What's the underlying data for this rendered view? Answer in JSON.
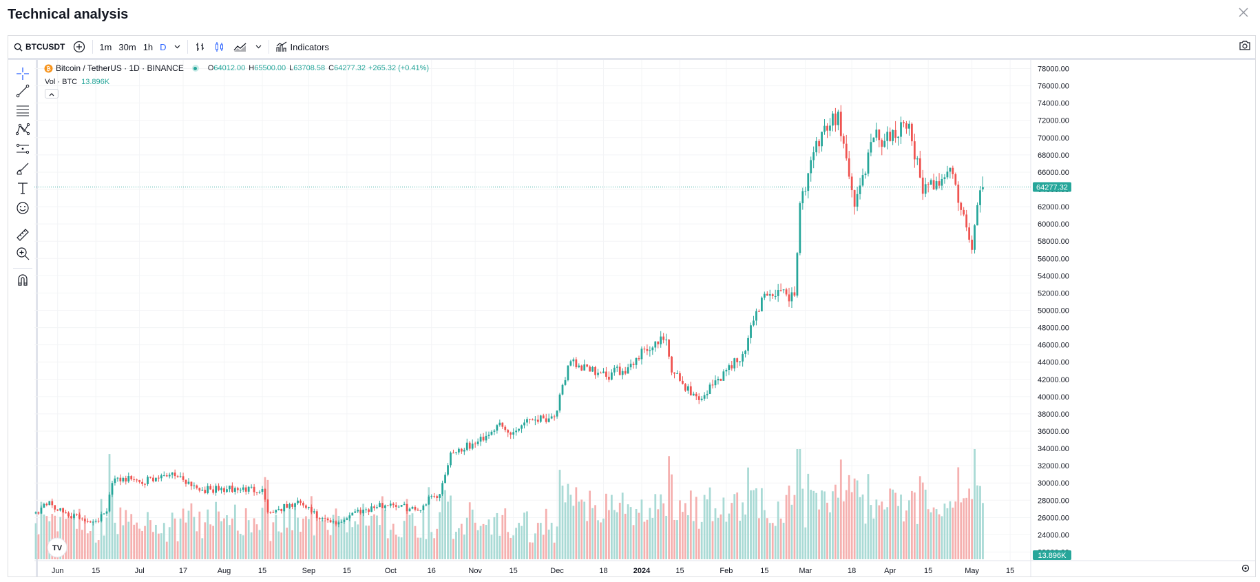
{
  "page": {
    "title": "Technical analysis"
  },
  "toolbar": {
    "symbol": "BTCUSDT",
    "intervals": [
      "1m",
      "30m",
      "1h",
      "D"
    ],
    "active_interval": "D",
    "indicators_label": "Indicators"
  },
  "legend": {
    "name": "Bitcoin / TetherUS · 1D · BINANCE",
    "o_label": "O",
    "o": "64012.00",
    "h_label": "H",
    "h": "65500.00",
    "l_label": "L",
    "l": "63708.58",
    "c_label": "C",
    "c": "64277.32",
    "change": "+265.32 (+0.41%)",
    "vol_label": "Vol · BTC",
    "vol": "13.896K"
  },
  "price_axis": {
    "labels": [
      "78000.00",
      "76000.00",
      "74000.00",
      "72000.00",
      "70000.00",
      "68000.00",
      "66000.00",
      "64000.00",
      "62000.00",
      "60000.00",
      "58000.00",
      "56000.00",
      "54000.00",
      "52000.00",
      "50000.00",
      "48000.00",
      "46000.00",
      "44000.00",
      "42000.00",
      "40000.00",
      "38000.00",
      "36000.00",
      "34000.00",
      "32000.00",
      "30000.00",
      "28000.00",
      "26000.00",
      "24000.00",
      "22000.00"
    ],
    "current_price": "64277.32",
    "current_volume": "13.896K"
  },
  "time_axis": {
    "labels": [
      {
        "text": "Jun",
        "bold": false
      },
      {
        "text": "15",
        "bold": false
      },
      {
        "text": "Jul",
        "bold": false
      },
      {
        "text": "17",
        "bold": false
      },
      {
        "text": "Aug",
        "bold": false
      },
      {
        "text": "15",
        "bold": false
      },
      {
        "text": "Sep",
        "bold": false
      },
      {
        "text": "15",
        "bold": false
      },
      {
        "text": "Oct",
        "bold": false
      },
      {
        "text": "16",
        "bold": false
      },
      {
        "text": "Nov",
        "bold": false
      },
      {
        "text": "15",
        "bold": false
      },
      {
        "text": "Dec",
        "bold": false
      },
      {
        "text": "18",
        "bold": false
      },
      {
        "text": "2024",
        "bold": true
      },
      {
        "text": "15",
        "bold": false
      },
      {
        "text": "Feb",
        "bold": false
      },
      {
        "text": "15",
        "bold": false
      },
      {
        "text": "Mar",
        "bold": false
      },
      {
        "text": "18",
        "bold": false
      },
      {
        "text": "Apr",
        "bold": false
      },
      {
        "text": "15",
        "bold": false
      },
      {
        "text": "May",
        "bold": false
      },
      {
        "text": "15",
        "bold": false
      }
    ]
  },
  "colors": {
    "up": "#26a69a",
    "down": "#ef5350",
    "up_vol": "#a9dad5",
    "down_vol": "#f5b0af",
    "accent": "#2962ff"
  },
  "icons": {
    "close": "close-icon",
    "search": "search-icon",
    "compare": "plus-circle-icon",
    "bar_style": "bar-style-icon",
    "candle_style": "candle-style-icon",
    "area_style": "area-style-icon",
    "indicators": "indicators-icon",
    "snapshot": "camera-icon",
    "settings": "gear-icon",
    "tradingview_logo": "tradingview-logo-icon"
  },
  "chart_data": {
    "type": "candlestick",
    "series": [
      {
        "name": "Bitcoin / TetherUS · 1D · BINANCE"
      }
    ],
    "x_start": "2023-05-24",
    "x_end": "2024-05-05",
    "y_unit": "USDT",
    "ylim": [
      21000,
      79000
    ],
    "anchors": [
      {
        "date": "2023-05-24",
        "close": 26600
      },
      {
        "date": "2023-05-29",
        "close": 27900
      },
      {
        "date": "2023-06-01",
        "close": 26800
      },
      {
        "date": "2023-06-10",
        "close": 25800
      },
      {
        "date": "2023-06-15",
        "close": 25600
      },
      {
        "date": "2023-06-19",
        "close": 26700
      },
      {
        "date": "2023-06-21",
        "close": 30000
      },
      {
        "date": "2023-06-23",
        "close": 30600
      },
      {
        "date": "2023-07-06",
        "close": 30200
      },
      {
        "date": "2023-07-13",
        "close": 31200
      },
      {
        "date": "2023-07-24",
        "close": 29200
      },
      {
        "date": "2023-08-15",
        "close": 29300
      },
      {
        "date": "2023-08-17",
        "close": 26600
      },
      {
        "date": "2023-08-29",
        "close": 27700
      },
      {
        "date": "2023-09-05",
        "close": 25800
      },
      {
        "date": "2023-09-11",
        "close": 25200
      },
      {
        "date": "2023-09-18",
        "close": 26700
      },
      {
        "date": "2023-10-01",
        "close": 27600
      },
      {
        "date": "2023-10-11",
        "close": 26800
      },
      {
        "date": "2023-10-16",
        "close": 28500
      },
      {
        "date": "2023-10-19",
        "close": 28700
      },
      {
        "date": "2023-10-23",
        "close": 33500
      },
      {
        "date": "2023-11-01",
        "close": 34500
      },
      {
        "date": "2023-11-09",
        "close": 36700
      },
      {
        "date": "2023-11-14",
        "close": 35600
      },
      {
        "date": "2023-11-20",
        "close": 37400
      },
      {
        "date": "2023-11-30",
        "close": 37700
      },
      {
        "date": "2023-12-04",
        "close": 41900
      },
      {
        "date": "2023-12-06",
        "close": 44100
      },
      {
        "date": "2023-12-13",
        "close": 42900
      },
      {
        "date": "2023-12-19",
        "close": 42300
      },
      {
        "date": "2023-12-27",
        "close": 43400
      },
      {
        "date": "2024-01-02",
        "close": 45500
      },
      {
        "date": "2024-01-10",
        "close": 46600
      },
      {
        "date": "2024-01-12",
        "close": 42800
      },
      {
        "date": "2024-01-22",
        "close": 39600
      },
      {
        "date": "2024-02-01",
        "close": 43100
      },
      {
        "date": "2024-02-08",
        "close": 45300
      },
      {
        "date": "2024-02-12",
        "close": 49900
      },
      {
        "date": "2024-02-15",
        "close": 51900
      },
      {
        "date": "2024-02-26",
        "close": 51700
      },
      {
        "date": "2024-02-28",
        "close": 62400
      },
      {
        "date": "2024-03-04",
        "close": 68300
      },
      {
        "date": "2024-03-13",
        "close": 73000
      },
      {
        "date": "2024-03-19",
        "close": 62000
      },
      {
        "date": "2024-03-26",
        "close": 70000
      },
      {
        "date": "2024-04-01",
        "close": 69600
      },
      {
        "date": "2024-04-08",
        "close": 71600
      },
      {
        "date": "2024-04-13",
        "close": 63500
      },
      {
        "date": "2024-04-23",
        "close": 66500
      },
      {
        "date": "2024-05-01",
        "close": 57000
      },
      {
        "date": "2024-05-04",
        "close": 63900
      },
      {
        "date": "2024-05-05",
        "close": 64277.32
      }
    ],
    "last_bar": {
      "open": 64012.0,
      "high": 65500.0,
      "low": 63708.58,
      "close": 64277.32
    }
  }
}
